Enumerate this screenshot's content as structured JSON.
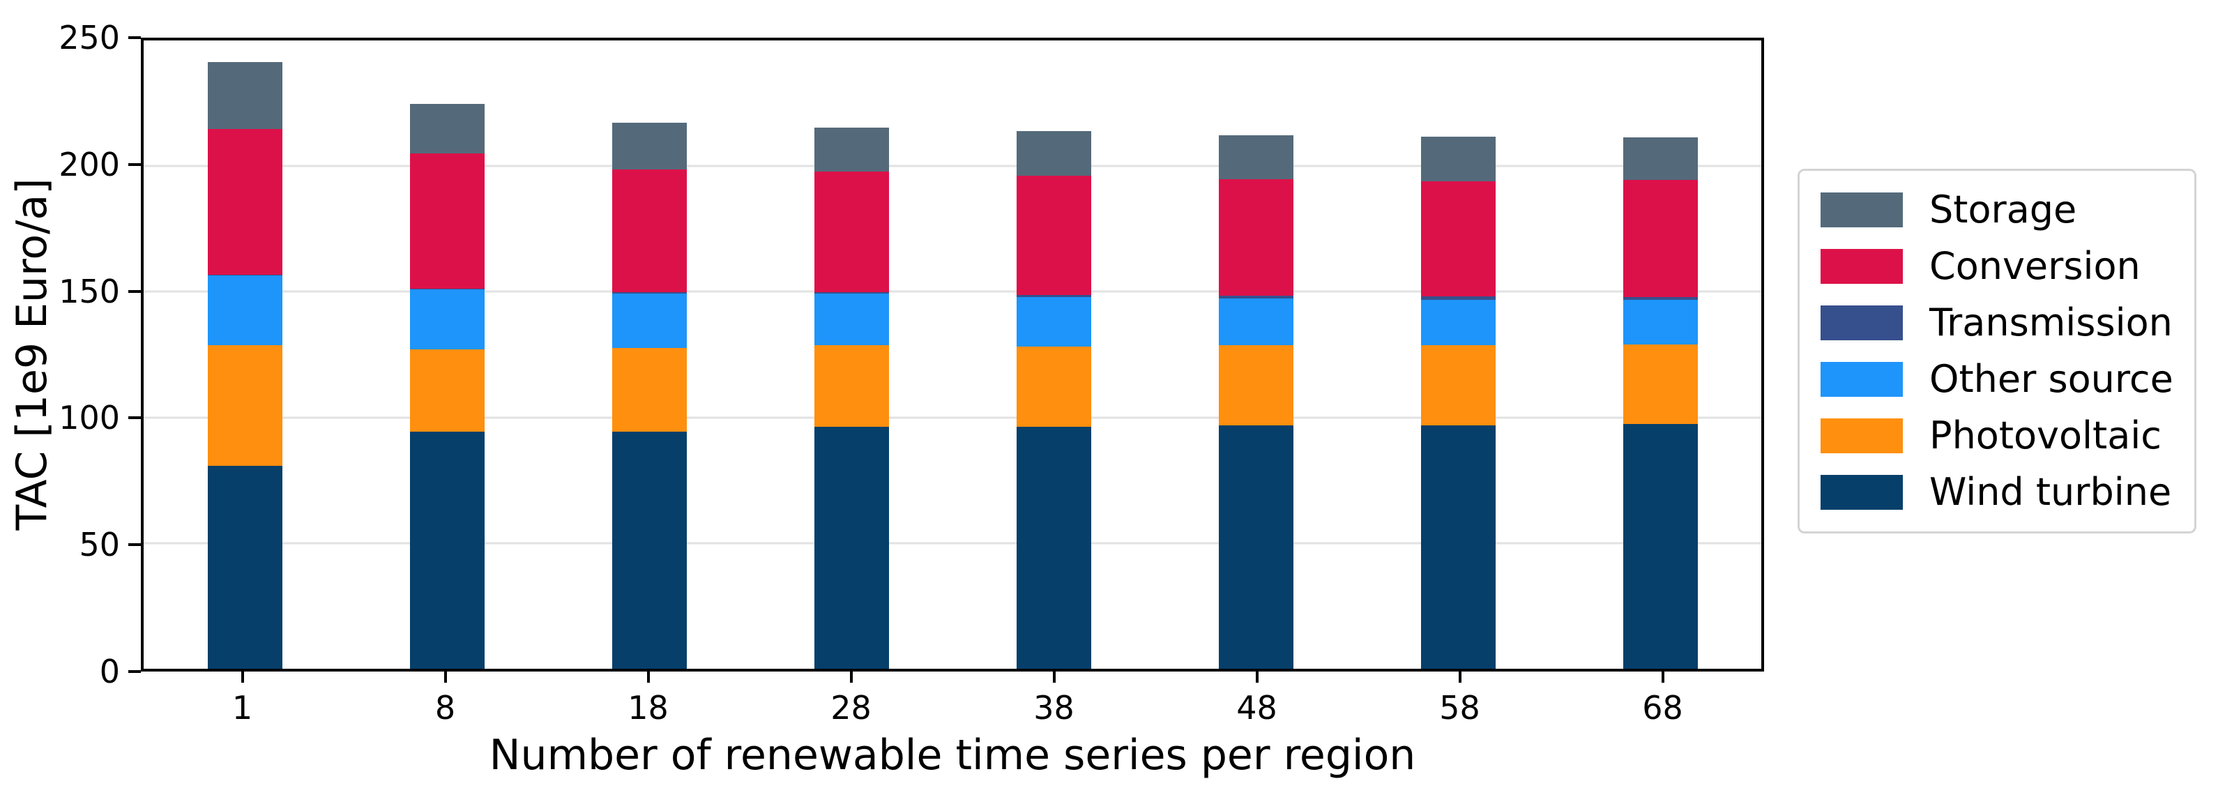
{
  "chart_data": {
    "type": "bar",
    "stacked": true,
    "title": "",
    "xlabel": "Number of renewable time series per region",
    "ylabel": "TAC [1e9 Euro/a]",
    "categories": [
      "1",
      "8",
      "18",
      "28",
      "38",
      "48",
      "58",
      "68"
    ],
    "ylim": [
      0,
      250
    ],
    "yticks": [
      0,
      50,
      100,
      150,
      200,
      250
    ],
    "grid": true,
    "legend_position": "right",
    "series": [
      {
        "name": "Wind turbine",
        "color": "#063f6a",
        "values": [
          80.0,
          93.5,
          93.5,
          95.5,
          95.5,
          96.0,
          96.0,
          96.5
        ]
      },
      {
        "name": "Photovoltaic",
        "color": "#ff8f0e",
        "values": [
          47.5,
          32.5,
          33.0,
          32.0,
          31.5,
          31.5,
          31.5,
          31.5
        ]
      },
      {
        "name": "Other source",
        "color": "#1e95fa",
        "values": [
          27.5,
          23.5,
          21.5,
          20.5,
          19.5,
          18.5,
          18.0,
          17.5
        ]
      },
      {
        "name": "Transmission",
        "color": "#36508e",
        "values": [
          0.3,
          0.3,
          0.4,
          0.5,
          1.0,
          1.2,
          1.3,
          1.2
        ]
      },
      {
        "name": "Conversion",
        "color": "#dd1149",
        "values": [
          57.5,
          53.5,
          48.5,
          47.5,
          47.0,
          46.0,
          45.5,
          46.0
        ]
      },
      {
        "name": "Storage",
        "color": "#546a7b",
        "values": [
          26.5,
          19.5,
          18.5,
          17.5,
          17.5,
          17.3,
          17.5,
          16.8
        ]
      }
    ],
    "legend_order": [
      "Storage",
      "Conversion",
      "Transmission",
      "Other source",
      "Photovoltaic",
      "Wind turbine"
    ],
    "totals": [
      239.3,
      222.8,
      215.4,
      213.5,
      212.0,
      210.5,
      209.8,
      209.5
    ]
  },
  "style": {
    "gridline_color": "#e2e2e2",
    "spine_color": "#000000",
    "background": "#ffffff",
    "legend_border_color": "#d4d4d4"
  }
}
